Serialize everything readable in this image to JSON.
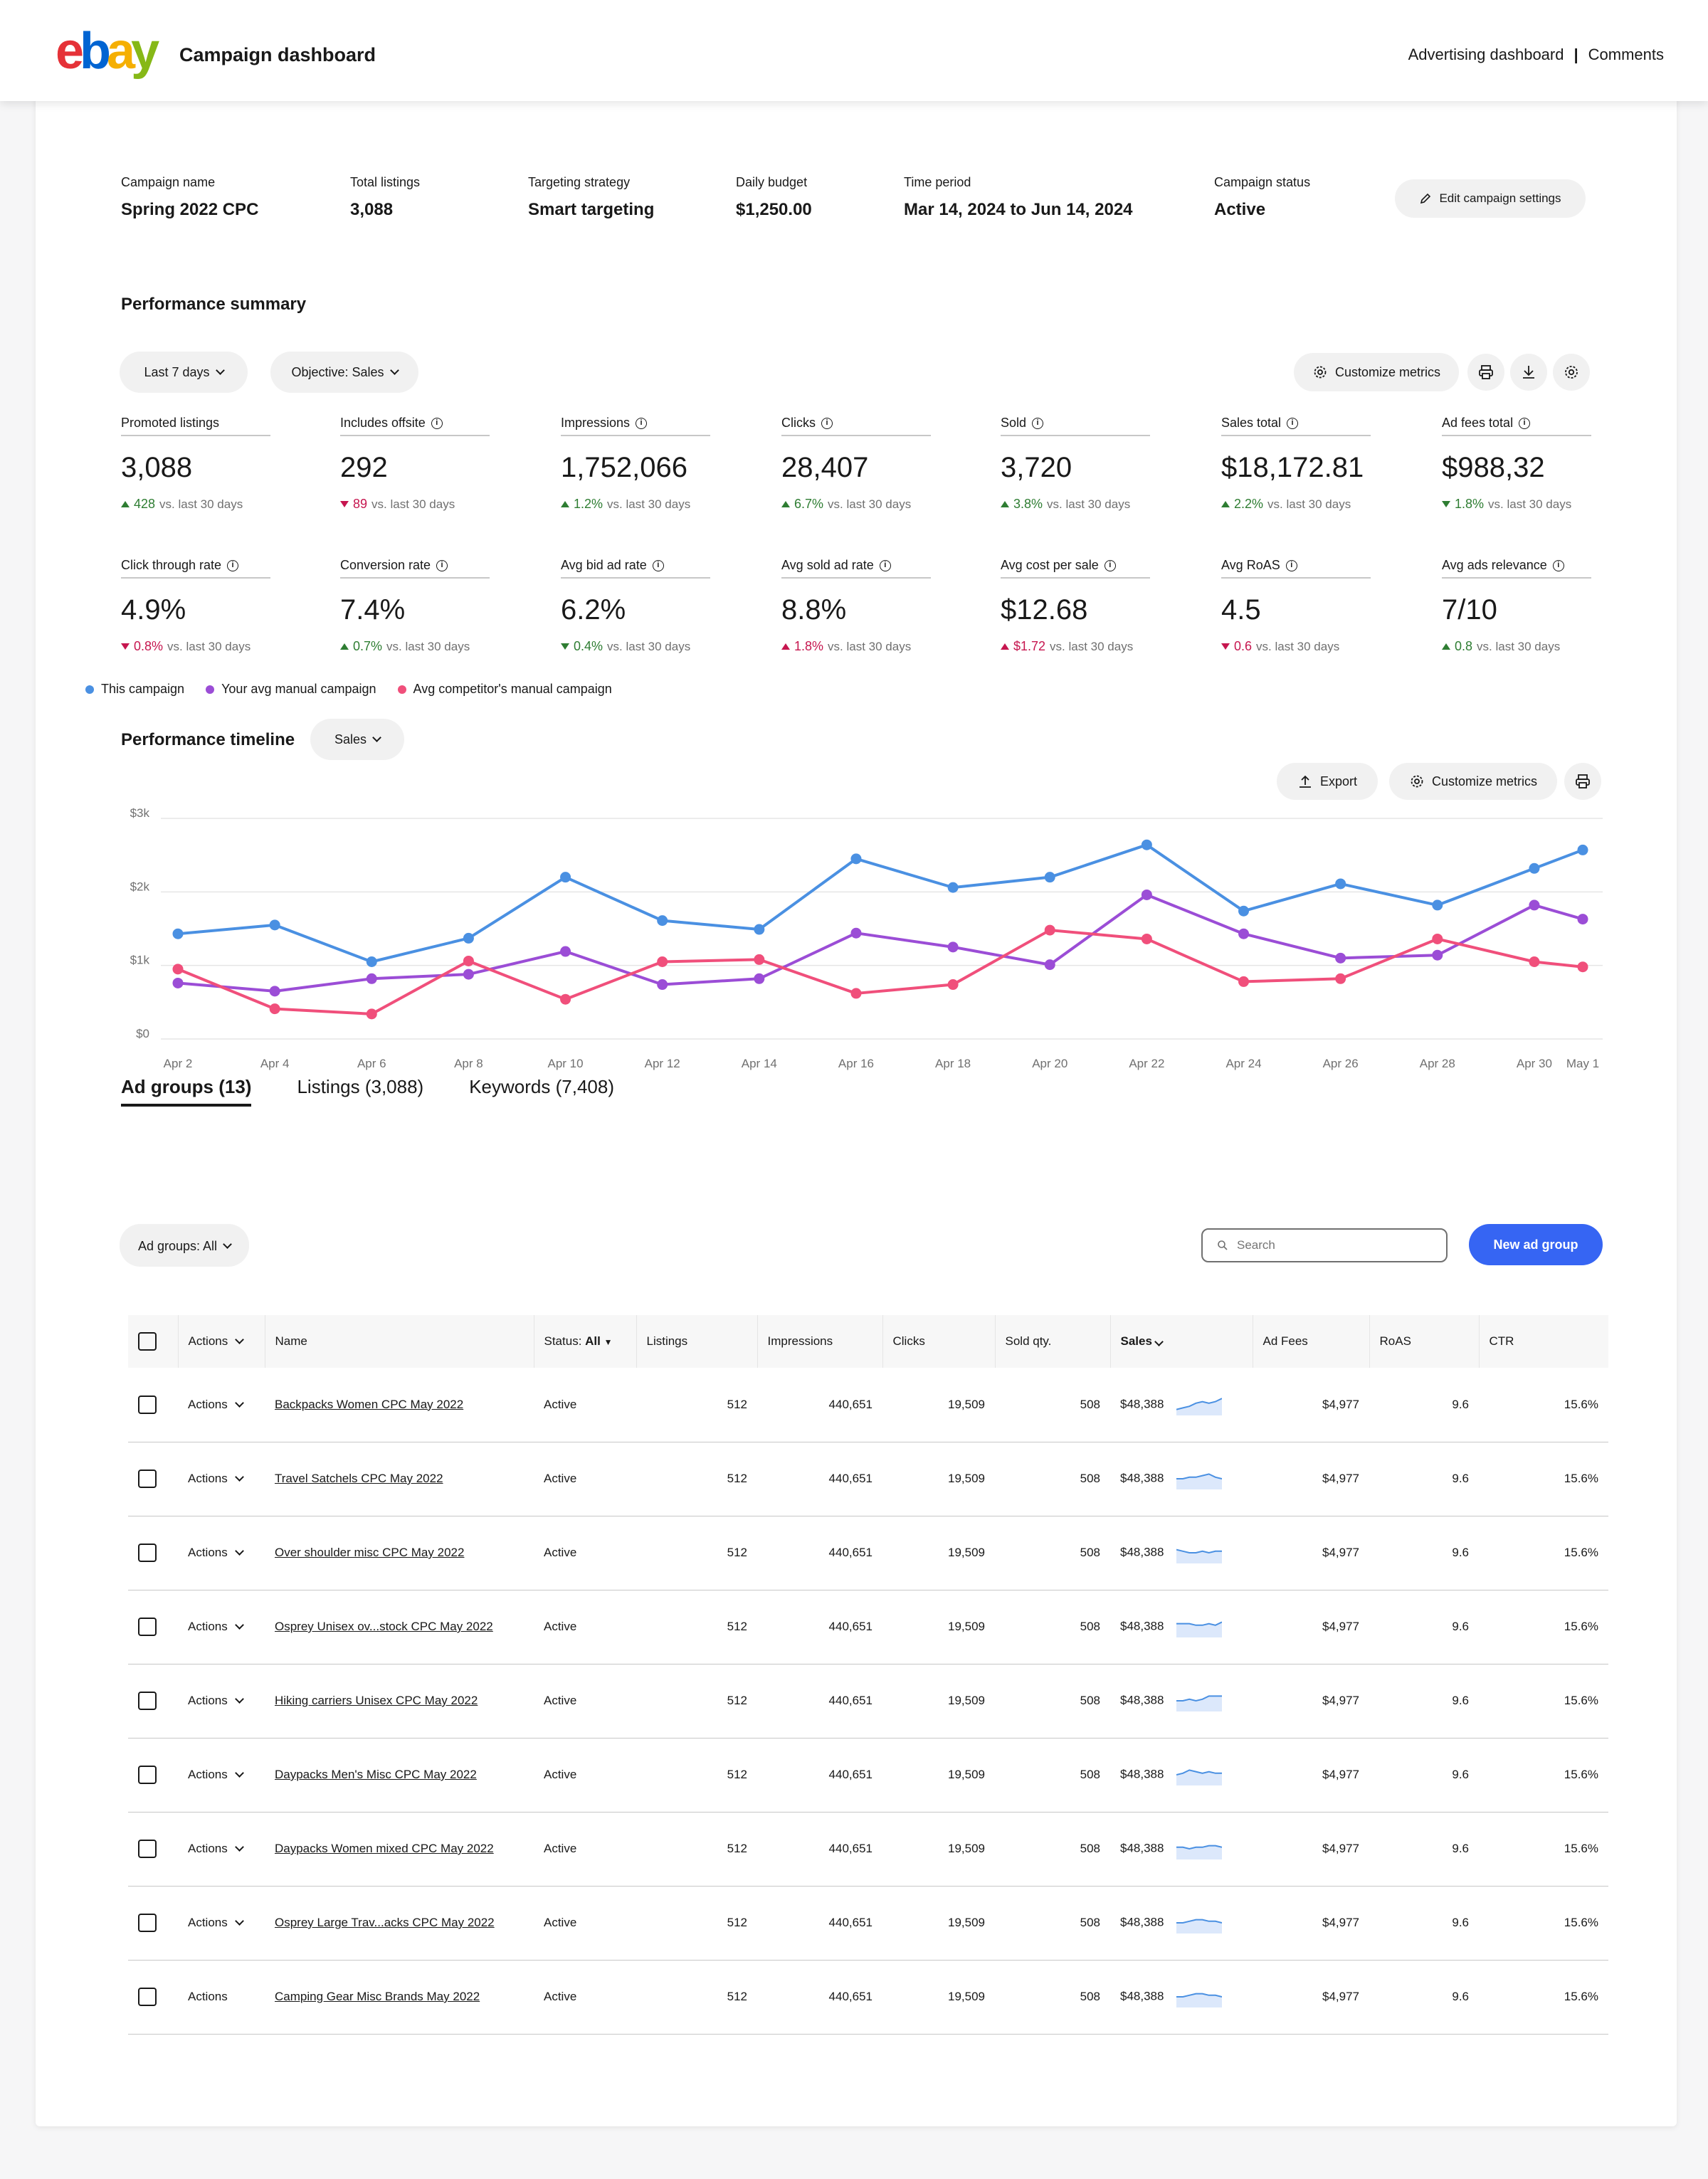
{
  "header": {
    "logo_letters": [
      "e",
      "b",
      "a",
      "y"
    ],
    "logo_colors": [
      "#e53238",
      "#0064d2",
      "#f5af02",
      "#86b817"
    ],
    "title": "Campaign dashboard",
    "links": [
      "Advertising dashboard",
      "|",
      "Comments"
    ]
  },
  "campaign": [
    {
      "label": "Campaign name",
      "value": "Spring 2022 CPC"
    },
    {
      "label": "Total listings",
      "value": "3,088"
    },
    {
      "label": "Targeting strategy",
      "value": "Smart targeting"
    },
    {
      "label": "Daily budget",
      "value": "$1,250.00"
    },
    {
      "label": "Time period",
      "value": "Mar 14, 2024 to Jun 14, 2024"
    },
    {
      "label": "Campaign status",
      "value": "Active"
    }
  ],
  "edit_settings_label": "Edit campaign settings",
  "summary": {
    "title": "Performance summary",
    "filter_period": "Last 7 days",
    "filter_objective": "Objective: Sales",
    "customize_label": "Customize metrics",
    "metrics": [
      {
        "label": "Promoted listings",
        "info": false,
        "value": "3,088",
        "delta": "428",
        "dir": "up",
        "good": true
      },
      {
        "label": "Includes offsite",
        "info": true,
        "value": "292",
        "delta": "89",
        "dir": "down",
        "good": false
      },
      {
        "label": "Impressions",
        "info": true,
        "value": "1,752,066",
        "delta": "1.2%",
        "dir": "up",
        "good": true
      },
      {
        "label": "Clicks",
        "info": true,
        "value": "28,407",
        "delta": "6.7%",
        "dir": "up",
        "good": true
      },
      {
        "label": "Sold",
        "info": true,
        "value": "3,720",
        "delta": "3.8%",
        "dir": "up",
        "good": true
      },
      {
        "label": "Sales total",
        "info": true,
        "value": "$18,172.81",
        "delta": "2.2%",
        "dir": "up",
        "good": true
      },
      {
        "label": "Ad fees total",
        "info": true,
        "value": "$988,32",
        "delta": "1.8%",
        "dir": "down",
        "good": true
      },
      {
        "label": "Click through rate",
        "info": true,
        "value": "4.9%",
        "delta": "0.8%",
        "dir": "down",
        "good": false
      },
      {
        "label": "Conversion rate",
        "info": true,
        "value": "7.4%",
        "delta": "0.7%",
        "dir": "up",
        "good": true
      },
      {
        "label": "Avg bid ad rate",
        "info": true,
        "value": "6.2%",
        "delta": "0.4%",
        "dir": "down",
        "good": true
      },
      {
        "label": "Avg sold ad rate",
        "info": true,
        "value": "8.8%",
        "delta": "1.8%",
        "dir": "up",
        "good": false
      },
      {
        "label": "Avg cost per sale",
        "info": true,
        "value": "$12.68",
        "delta": "$1.72",
        "dir": "up",
        "good": false
      },
      {
        "label": "Avg RoAS",
        "info": true,
        "value": "4.5",
        "delta": "0.6",
        "dir": "down",
        "good": false
      },
      {
        "label": "Avg ads relevance",
        "info": true,
        "value": "7/10",
        "delta": "0.8",
        "dir": "up",
        "good": true
      }
    ],
    "delta_caption": "vs. last 30 days"
  },
  "timeline": {
    "title": "Performance timeline",
    "metric_select": "Sales",
    "export_label": "Export",
    "customize_label": "Customize metrics"
  },
  "chart_data": {
    "type": "line",
    "x": [
      "Apr 2",
      "Apr 3",
      "Apr 4",
      "Apr 5",
      "Apr 6",
      "Apr 7",
      "Apr 8",
      "Apr 9",
      "Apr 10",
      "Apr 11",
      "Apr 12",
      "Apr 13",
      "Apr 14",
      "Apr 15",
      "Apr 16",
      "Apr 17",
      "Apr 18",
      "Apr 19",
      "Apr 20",
      "Apr 21",
      "Apr 22",
      "Apr 23",
      "Apr 24",
      "Apr 25",
      "Apr 26",
      "Apr 27",
      "Apr 28",
      "Apr 29",
      "Apr 30",
      "May 1"
    ],
    "x_ticks": [
      "Apr 2",
      "Apr 4",
      "Apr 6",
      "Apr 8",
      "Apr 10",
      "Apr 12",
      "Apr 14",
      "Apr 16",
      "Apr 18",
      "Apr 20",
      "Apr 22",
      "Apr 24",
      "Apr 26",
      "Apr 28",
      "Apr 30",
      "May 1"
    ],
    "y_ticks": [
      "$0",
      "$1k",
      "$2k",
      "$3k"
    ],
    "ylim": [
      0,
      3000
    ],
    "series": [
      {
        "name": "This campaign",
        "color": "#4a90e2",
        "points": [
          [
            0,
            1430
          ],
          [
            2,
            1550
          ],
          [
            4,
            1050
          ],
          [
            6,
            1370
          ],
          [
            8,
            2200
          ],
          [
            10,
            1610
          ],
          [
            12,
            1490
          ],
          [
            14,
            2450
          ],
          [
            16,
            2060
          ],
          [
            18,
            2200
          ],
          [
            20,
            2640
          ],
          [
            22,
            1740
          ],
          [
            24,
            2110
          ],
          [
            26,
            1820
          ],
          [
            28,
            2320
          ],
          [
            29,
            2570
          ]
        ]
      },
      {
        "name": "Your avg manual campaign",
        "color": "#9b4dd6",
        "points": [
          [
            0,
            760
          ],
          [
            2,
            650
          ],
          [
            4,
            820
          ],
          [
            6,
            880
          ],
          [
            8,
            1190
          ],
          [
            10,
            740
          ],
          [
            12,
            820
          ],
          [
            14,
            1440
          ],
          [
            16,
            1250
          ],
          [
            18,
            1010
          ],
          [
            20,
            1960
          ],
          [
            22,
            1430
          ],
          [
            24,
            1100
          ],
          [
            26,
            1140
          ],
          [
            28,
            1820
          ],
          [
            29,
            1630
          ]
        ]
      },
      {
        "name": "Avg competitor's manual campaign",
        "color": "#f04f7b",
        "points": [
          [
            0,
            950
          ],
          [
            2,
            410
          ],
          [
            4,
            340
          ],
          [
            6,
            1060
          ],
          [
            8,
            540
          ],
          [
            10,
            1050
          ],
          [
            12,
            1080
          ],
          [
            14,
            620
          ],
          [
            16,
            740
          ],
          [
            18,
            1480
          ],
          [
            20,
            1360
          ],
          [
            22,
            780
          ],
          [
            24,
            820
          ],
          [
            26,
            1360
          ],
          [
            28,
            1050
          ],
          [
            29,
            980
          ]
        ]
      }
    ]
  },
  "tabs": [
    "Ad groups (13)",
    "Listings (3,088)",
    "Keywords (7,408)"
  ],
  "ad_groups": {
    "filter": "Ad groups: All",
    "search_placeholder": "Search",
    "new_button": "New ad group",
    "columns": [
      "Actions",
      "Name",
      "Status:",
      "All",
      "Listings",
      "Impressions",
      "Clicks",
      "Sold qty.",
      "Sales",
      "Ad Fees",
      "RoAS",
      "CTR"
    ],
    "rows": [
      {
        "action": "Actions",
        "name": "Backpacks Women CPC May 2022",
        "status": "Active",
        "listings": "512",
        "impressions": "440,651",
        "clicks": "19,509",
        "sold": "508",
        "sales": "$48,388",
        "spark": [
          2,
          3,
          4,
          6,
          7,
          6,
          7,
          9
        ],
        "fees": "$4,977",
        "roas": "9.6",
        "ctr": "15.6%"
      },
      {
        "action": "Actions",
        "name": "Travel Satchels CPC May 2022",
        "status": "Active",
        "listings": "512",
        "impressions": "440,651",
        "clicks": "19,509",
        "sold": "508",
        "sales": "$48,388",
        "spark": [
          5,
          5,
          6,
          6,
          7,
          8,
          6,
          5
        ],
        "fees": "$4,977",
        "roas": "9.6",
        "ctr": "15.6%"
      },
      {
        "action": "Actions",
        "name": "Over shoulder misc CPC May 2022",
        "status": "Active",
        "listings": "512",
        "impressions": "440,651",
        "clicks": "19,509",
        "sold": "508",
        "sales": "$48,388",
        "spark": [
          7,
          6,
          5,
          5,
          6,
          5,
          6,
          6
        ],
        "fees": "$4,977",
        "roas": "9.6",
        "ctr": "15.6%"
      },
      {
        "action": "Actions",
        "name": "Osprey Unisex ov...stock CPC May 2022",
        "status": "Active",
        "listings": "512",
        "impressions": "440,651",
        "clicks": "19,509",
        "sold": "508",
        "sales": "$48,388",
        "spark": [
          7,
          7,
          7,
          6,
          6,
          7,
          6,
          8
        ],
        "fees": "$4,977",
        "roas": "9.6",
        "ctr": "15.6%"
      },
      {
        "action": "Actions",
        "name": "Hiking carriers Unisex CPC May 2022",
        "status": "Active",
        "listings": "512",
        "impressions": "440,651",
        "clicks": "19,509",
        "sold": "508",
        "sales": "$48,388",
        "spark": [
          5,
          5,
          6,
          5,
          6,
          8,
          8,
          8
        ],
        "fees": "$4,977",
        "roas": "9.6",
        "ctr": "15.6%"
      },
      {
        "action": "Actions",
        "name": "Daypacks Men's Misc CPC May 2022",
        "status": "Active",
        "listings": "512",
        "impressions": "440,651",
        "clicks": "19,509",
        "sold": "508",
        "sales": "$48,388",
        "spark": [
          5,
          6,
          8,
          7,
          6,
          7,
          6,
          6
        ],
        "fees": "$4,977",
        "roas": "9.6",
        "ctr": "15.6%"
      },
      {
        "action": "Actions",
        "name": "Daypacks Women mixed CPC May 2022",
        "status": "Active",
        "listings": "512",
        "impressions": "440,651",
        "clicks": "19,509",
        "sold": "508",
        "sales": "$48,388",
        "spark": [
          6,
          6,
          5,
          6,
          6,
          7,
          7,
          6
        ],
        "fees": "$4,977",
        "roas": "9.6",
        "ctr": "15.6%"
      },
      {
        "action": "Actions",
        "name": "Osprey Large Trav...acks CPC May 2022",
        "status": "Active",
        "listings": "512",
        "impressions": "440,651",
        "clicks": "19,509",
        "sold": "508",
        "sales": "$48,388",
        "spark": [
          5,
          5,
          6,
          7,
          7,
          6,
          6,
          5
        ],
        "fees": "$4,977",
        "roas": "9.6",
        "ctr": "15.6%"
      },
      {
        "action": "Actions",
        "name": "Camping Gear Misc Brands May 2022",
        "status": "Active",
        "listings": "512",
        "impressions": "440,651",
        "clicks": "19,509",
        "sold": "508",
        "sales": "$48,388",
        "spark": [
          5,
          5,
          6,
          7,
          7,
          6,
          6,
          5
        ],
        "fees": "$4,977",
        "roas": "9.6",
        "ctr": "15.6%"
      }
    ]
  }
}
